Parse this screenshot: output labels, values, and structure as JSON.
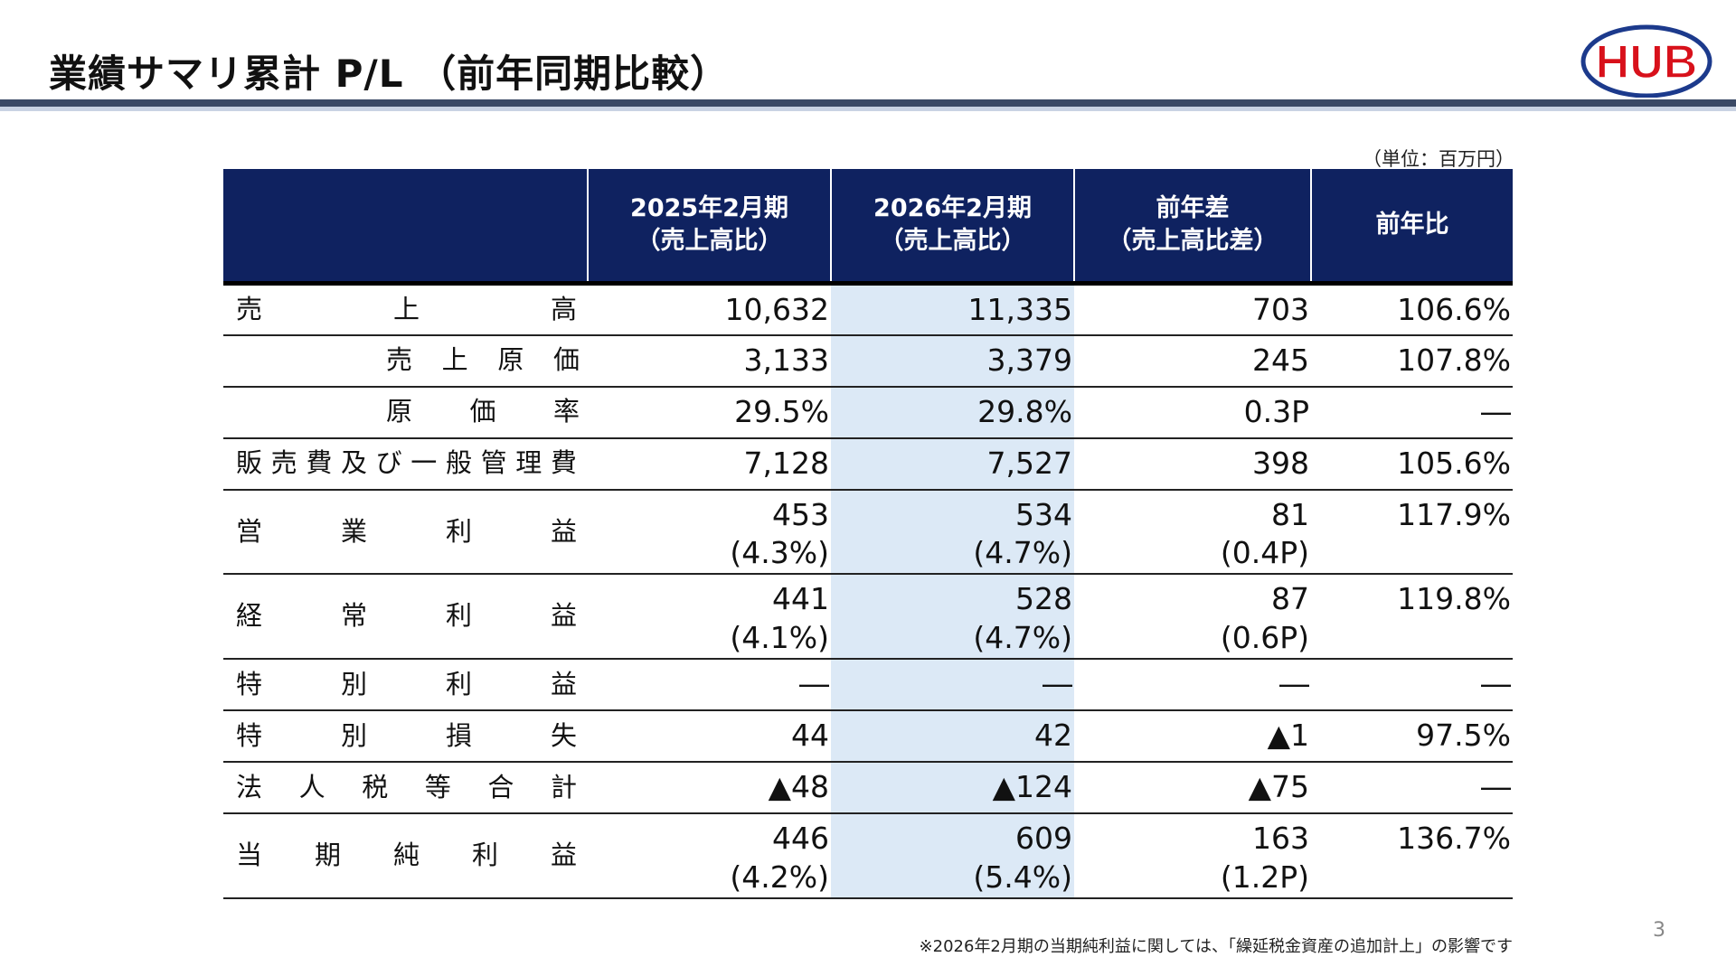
{
  "header": {
    "title": "業績サマリ累計 P/L （前年同期比較）",
    "logo_text": "HUB",
    "logo_colors": {
      "primary": "#d8111b",
      "secondary": "#1c3a8c"
    }
  },
  "unit_note": "（単位：百万円）",
  "table": {
    "columns": [
      "",
      "2025年2月期\n（売上高比）",
      "2026年2月期\n（売上高比）",
      "前年差\n（売上高比差）",
      "前年比"
    ],
    "rows": [
      {
        "label": "売上高",
        "indent": false,
        "fy2025": "10,632",
        "fy2025_ratio": "",
        "fy2026": "11,335",
        "fy2026_ratio": "",
        "diff": "703",
        "diff_ratio": "",
        "yoy": "106.6%"
      },
      {
        "label": "売上原価",
        "indent": true,
        "fy2025": "3,133",
        "fy2025_ratio": "",
        "fy2026": "3,379",
        "fy2026_ratio": "",
        "diff": "245",
        "diff_ratio": "",
        "yoy": "107.8%"
      },
      {
        "label": "原価率",
        "indent": true,
        "fy2025": "29.5%",
        "fy2025_ratio": "",
        "fy2026": "29.8%",
        "fy2026_ratio": "",
        "diff": "0.3P",
        "diff_ratio": "",
        "yoy": "―"
      },
      {
        "label": "販売費及び一般管理費",
        "indent": false,
        "fy2025": "7,128",
        "fy2025_ratio": "",
        "fy2026": "7,527",
        "fy2026_ratio": "",
        "diff": "398",
        "diff_ratio": "",
        "yoy": "105.6%"
      },
      {
        "label": "営業利益",
        "indent": false,
        "fy2025": "453",
        "fy2025_ratio": "(4.3%)",
        "fy2026": "534",
        "fy2026_ratio": "(4.7%)",
        "diff": "81",
        "diff_ratio": "(0.4P)",
        "yoy": "117.9%"
      },
      {
        "label": "経常利益",
        "indent": false,
        "fy2025": "441",
        "fy2025_ratio": "(4.1%)",
        "fy2026": "528",
        "fy2026_ratio": "(4.7%)",
        "diff": "87",
        "diff_ratio": "(0.6P)",
        "yoy": "119.8%"
      },
      {
        "label": "特別利益",
        "indent": false,
        "fy2025": "―",
        "fy2025_ratio": "",
        "fy2026": "―",
        "fy2026_ratio": "",
        "diff": "―",
        "diff_ratio": "",
        "yoy": "―"
      },
      {
        "label": "特別損失",
        "indent": false,
        "fy2025": "44",
        "fy2025_ratio": "",
        "fy2026": "42",
        "fy2026_ratio": "",
        "diff": "▲1",
        "diff_ratio": "",
        "yoy": "97.5%"
      },
      {
        "label": "法人税等合計",
        "indent": false,
        "fy2025": "▲48",
        "fy2025_ratio": "",
        "fy2026": "▲124",
        "fy2026_ratio": "",
        "diff": "▲75",
        "diff_ratio": "",
        "yoy": "―"
      },
      {
        "label": "当期純利益",
        "indent": false,
        "fy2025": "446",
        "fy2025_ratio": "(4.2%)",
        "fy2026": "609",
        "fy2026_ratio": "(5.4%)",
        "diff": "163",
        "diff_ratio": "(1.2P)",
        "yoy": "136.7%"
      }
    ]
  },
  "footnote": "※2026年2月期の当期純利益に関しては、「繰延税金資産の追加計上」の影響です",
  "page_number": "3",
  "colors": {
    "header_bg": "#0f2260",
    "highlight_col": "#dce9f6",
    "title_rule": "#3b4a66"
  }
}
